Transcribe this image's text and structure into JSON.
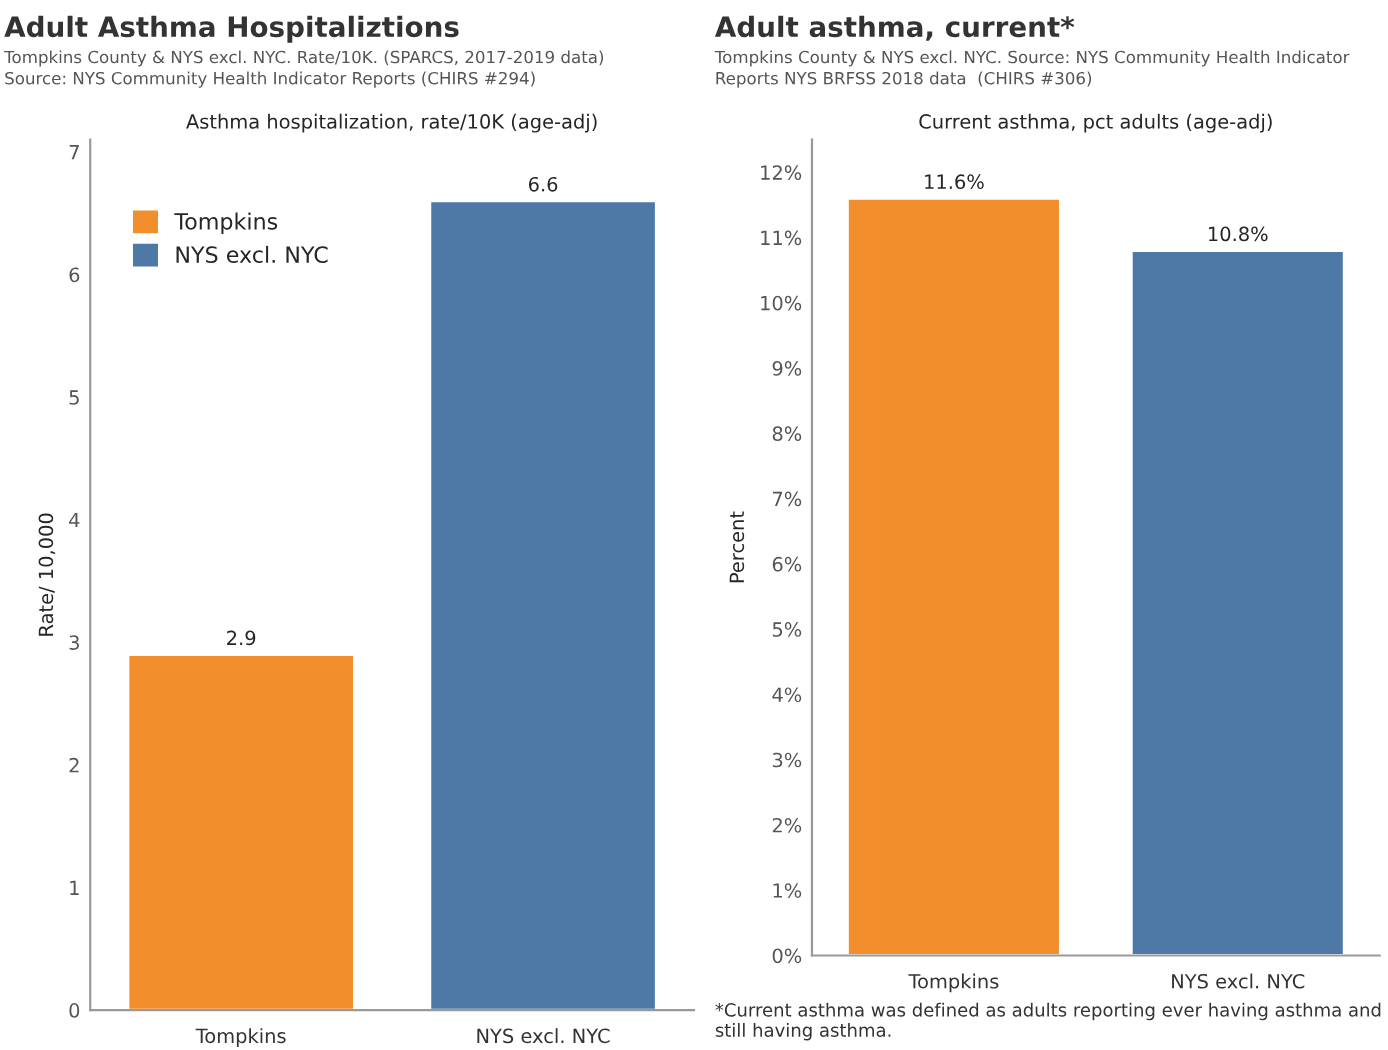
{
  "chart_data": [
    {
      "type": "bar",
      "title": "Adult Asthma Hospitaliztions",
      "subtitle": "Tompkins County & NYS excl. NYC. Rate/10K. (SPARCS, 2017-2019 data)\nSource: NYS Community Health Indicator Reports (CHIRS #294)",
      "xlabel": "Asthma hospitalization, rate/10K (age-adj)",
      "ylabel": "Rate/ 10,000",
      "categories": [
        "Tompkins",
        "NYS excl. NYC"
      ],
      "series": [
        {
          "name": "Tompkins",
          "color": "#f28e2b",
          "values": [
            2.9,
            null
          ]
        },
        {
          "name": "NYS excl. NYC",
          "color": "#4e79a7",
          "values": [
            null,
            6.6
          ]
        }
      ],
      "ylim": [
        0,
        7.1
      ],
      "yticks": [
        0,
        1,
        2,
        3,
        4,
        5,
        6,
        7
      ],
      "data_labels": true,
      "legend": "top left",
      "grid": false
    },
    {
      "type": "bar",
      "title": "Adult asthma, current*",
      "subtitle": "Tompkins County & NYS excl. NYC. Source: NYS Community Health Indicator\nReports NYS BRFSS 2018 data  (CHIRS #306)",
      "xlabel": "Current asthma, pct adults (age-adj)",
      "ylabel": "Percent",
      "categories": [
        "Tompkins",
        "NYS excl. NYC"
      ],
      "values": [
        11.6,
        10.8
      ],
      "colors": [
        "#f28e2b",
        "#4e79a7"
      ],
      "value_labels": [
        "11.6%",
        "10.8%"
      ],
      "ylim": [
        0,
        12.5
      ],
      "yticks": [
        {
          "value": 0,
          "label": "0%"
        },
        {
          "value": 1,
          "label": "1%"
        },
        {
          "value": 2,
          "label": "2%"
        },
        {
          "value": 3,
          "label": "3%"
        },
        {
          "value": 4,
          "label": "4%"
        },
        {
          "value": 5,
          "label": "5%"
        },
        {
          "value": 6,
          "label": "6%"
        },
        {
          "value": 7,
          "label": "7%"
        },
        {
          "value": 8,
          "label": "8%"
        },
        {
          "value": 9,
          "label": "9%"
        },
        {
          "value": 10,
          "label": "10%"
        },
        {
          "value": 11,
          "label": "11%"
        },
        {
          "value": 12,
          "label": "12%"
        }
      ],
      "annotations": [
        "*Current asthma was defined as adults reporting ever having asthma and still having asthma."
      ],
      "legend": false,
      "grid": false
    }
  ]
}
